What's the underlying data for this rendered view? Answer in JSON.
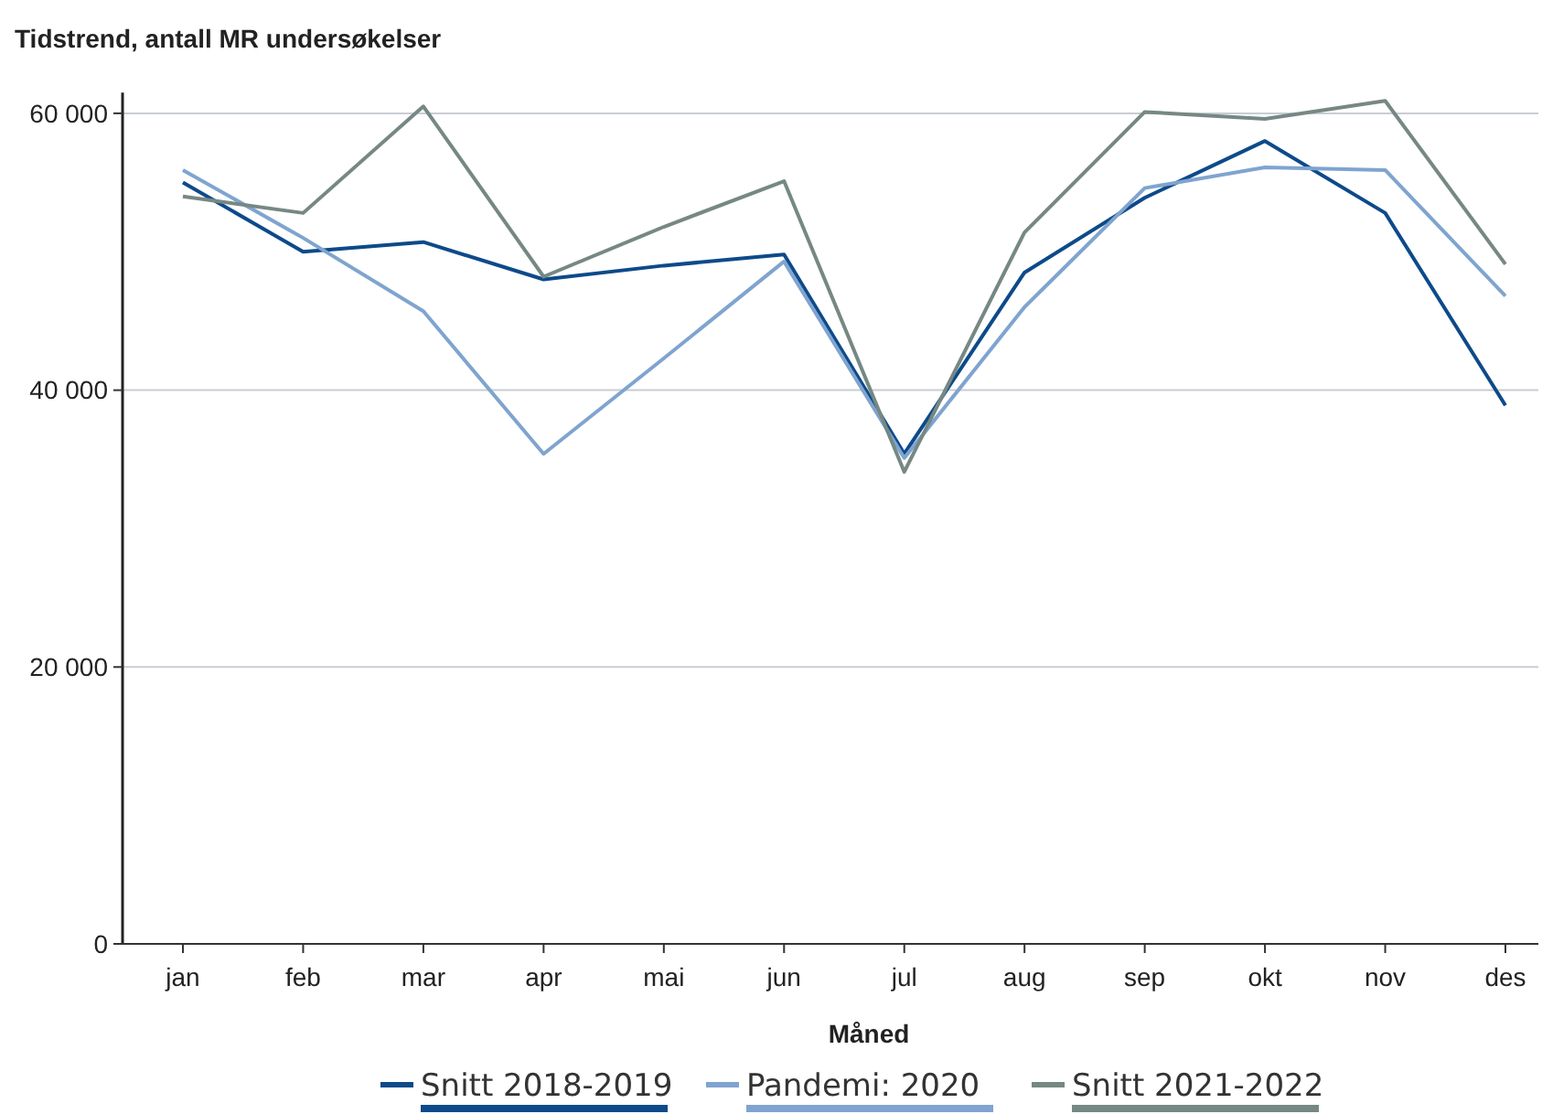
{
  "chart_data": {
    "type": "line",
    "title": "Tidstrend, antall MR undersøkelser",
    "xlabel": "Måned",
    "categories": [
      "jan",
      "feb",
      "mar",
      "apr",
      "mai",
      "jun",
      "jul",
      "aug",
      "sep",
      "okt",
      "nov",
      "des"
    ],
    "series": [
      {
        "name": "Snitt 2018-2019",
        "color": "#0d4a8a",
        "values": [
          55000,
          50000,
          50700,
          48000,
          49000,
          49800,
          35400,
          48500,
          53900,
          58000,
          52800,
          38900
        ]
      },
      {
        "name": "Pandemi: 2020",
        "color": "#7fa4cf",
        "values": [
          55900,
          51000,
          45700,
          35400,
          42300,
          49300,
          35100,
          46000,
          54600,
          56100,
          55900,
          46800
        ]
      },
      {
        "name": "Snitt 2021-2022",
        "color": "#768884",
        "values": [
          54000,
          52800,
          60500,
          48200,
          51800,
          55100,
          34100,
          51400,
          60100,
          59600,
          60900,
          49100
        ]
      }
    ],
    "ylim": [
      0,
      61500
    ],
    "yticks": [
      {
        "value": 0,
        "label": "0"
      },
      {
        "value": 20000,
        "label": "20 000"
      },
      {
        "value": 40000,
        "label": "40 000"
      },
      {
        "value": 60000,
        "label": "60 000"
      }
    ],
    "grid": "y",
    "legend": "bottom"
  }
}
